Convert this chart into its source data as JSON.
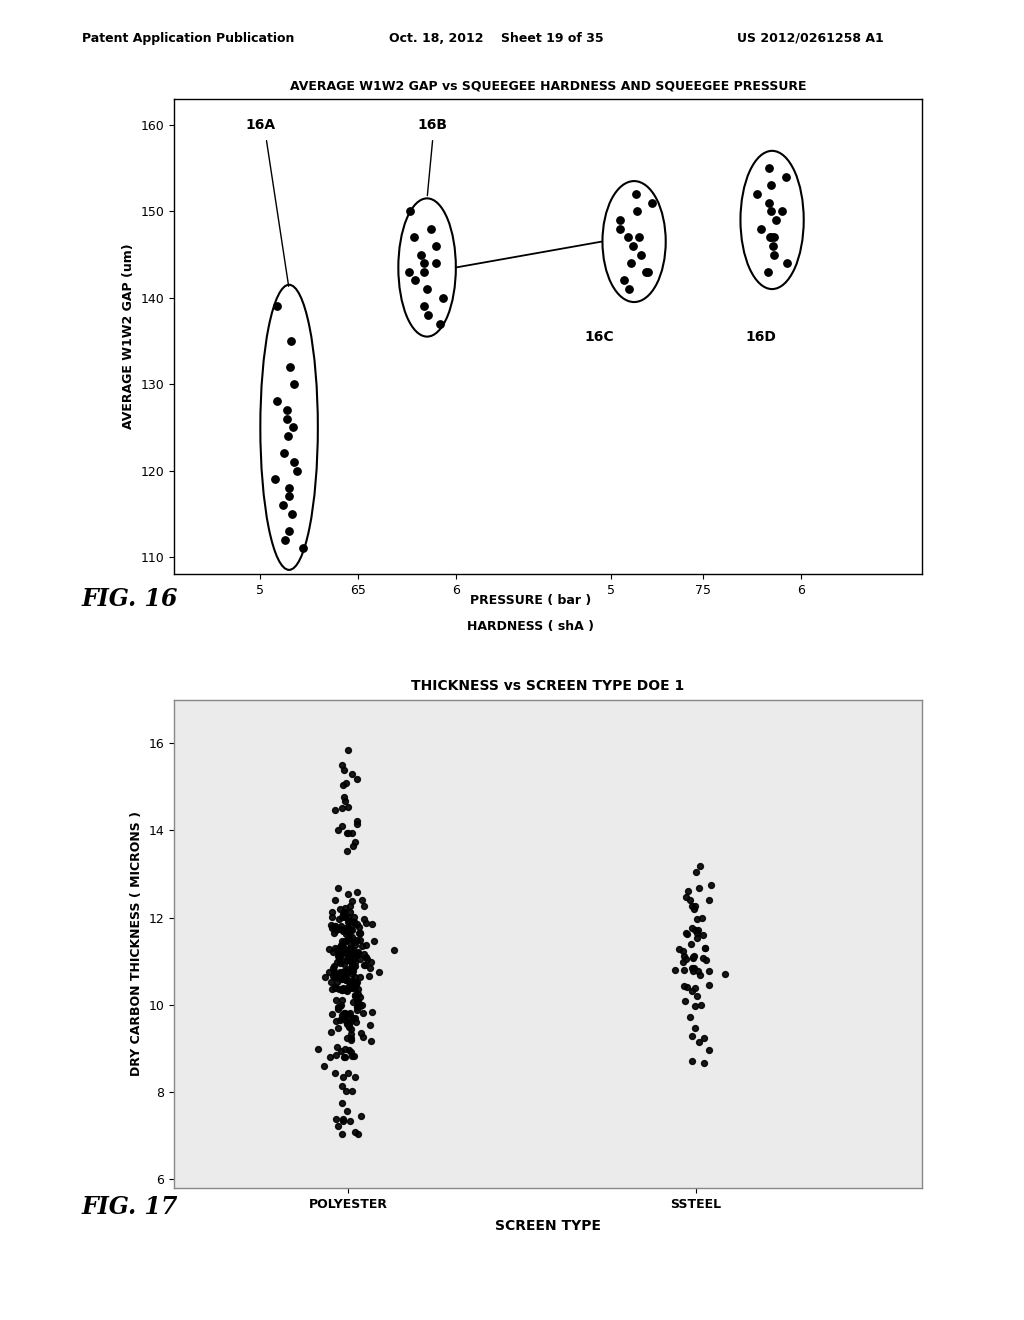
{
  "fig16": {
    "title": "AVERAGE W1W2 GAP vs SQUEEGEE HARDNESS AND SQUEEGEE PRESSURE",
    "ylabel": "AVERAGE W1W2 GAP (um)",
    "xlabel_line1": "PRESSURE ( bar )",
    "xlabel_line2": "HARDNESS ( shA )",
    "ylim": [
      108,
      163
    ],
    "yticks": [
      110,
      120,
      130,
      140,
      150,
      160
    ],
    "fig_label": "FIG. 16",
    "label_16A": "16A",
    "label_16B": "16B",
    "label_16C": "16C",
    "label_16D": "16D"
  },
  "fig17": {
    "title": "THICKNESS vs SCREEN TYPE DOE 1",
    "ylabel": "DRY CARBON THICKNESS ( MICRONS )",
    "xlabel": "SCREEN TYPE",
    "ylim": [
      5.8,
      17.0
    ],
    "yticks": [
      6,
      8,
      10,
      12,
      14,
      16
    ],
    "categories": [
      "POLYESTER",
      "SSTEEL"
    ],
    "fig_label": "FIG. 17"
  },
  "header": {
    "left": "Patent Application Publication",
    "center": "Oct. 18, 2012    Sheet 19 of 35",
    "right": "US 2012/0261258 A1"
  }
}
